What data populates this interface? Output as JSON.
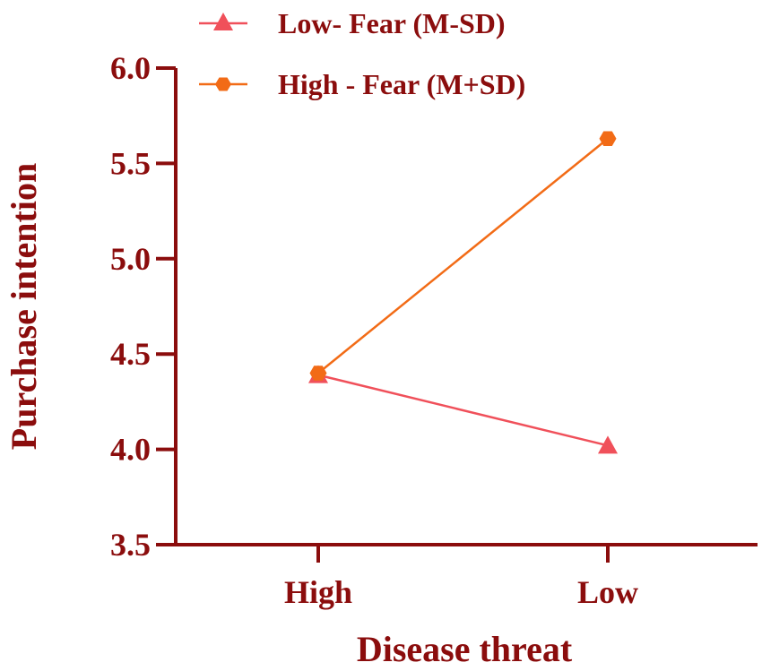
{
  "chart_data": {
    "type": "line",
    "title": "",
    "xlabel": "Disease threat",
    "ylabel": "Purchase intention",
    "categories": [
      "High",
      "Low"
    ],
    "ylim": [
      3.5,
      6.0
    ],
    "yticks": [
      "3.5",
      "4.0",
      "4.5",
      "5.0",
      "5.5",
      "6.0"
    ],
    "grid": false,
    "legend_position": "top",
    "axis_color": "#8b0d0d",
    "series": [
      {
        "name": "Low- Fear (M-SD)",
        "values": [
          4.39,
          4.02
        ],
        "color": "#f0505a",
        "marker": "triangle"
      },
      {
        "name": "High - Fear (M+SD)",
        "values": [
          4.4,
          5.63
        ],
        "color": "#f26b16",
        "marker": "hexagon"
      }
    ]
  }
}
